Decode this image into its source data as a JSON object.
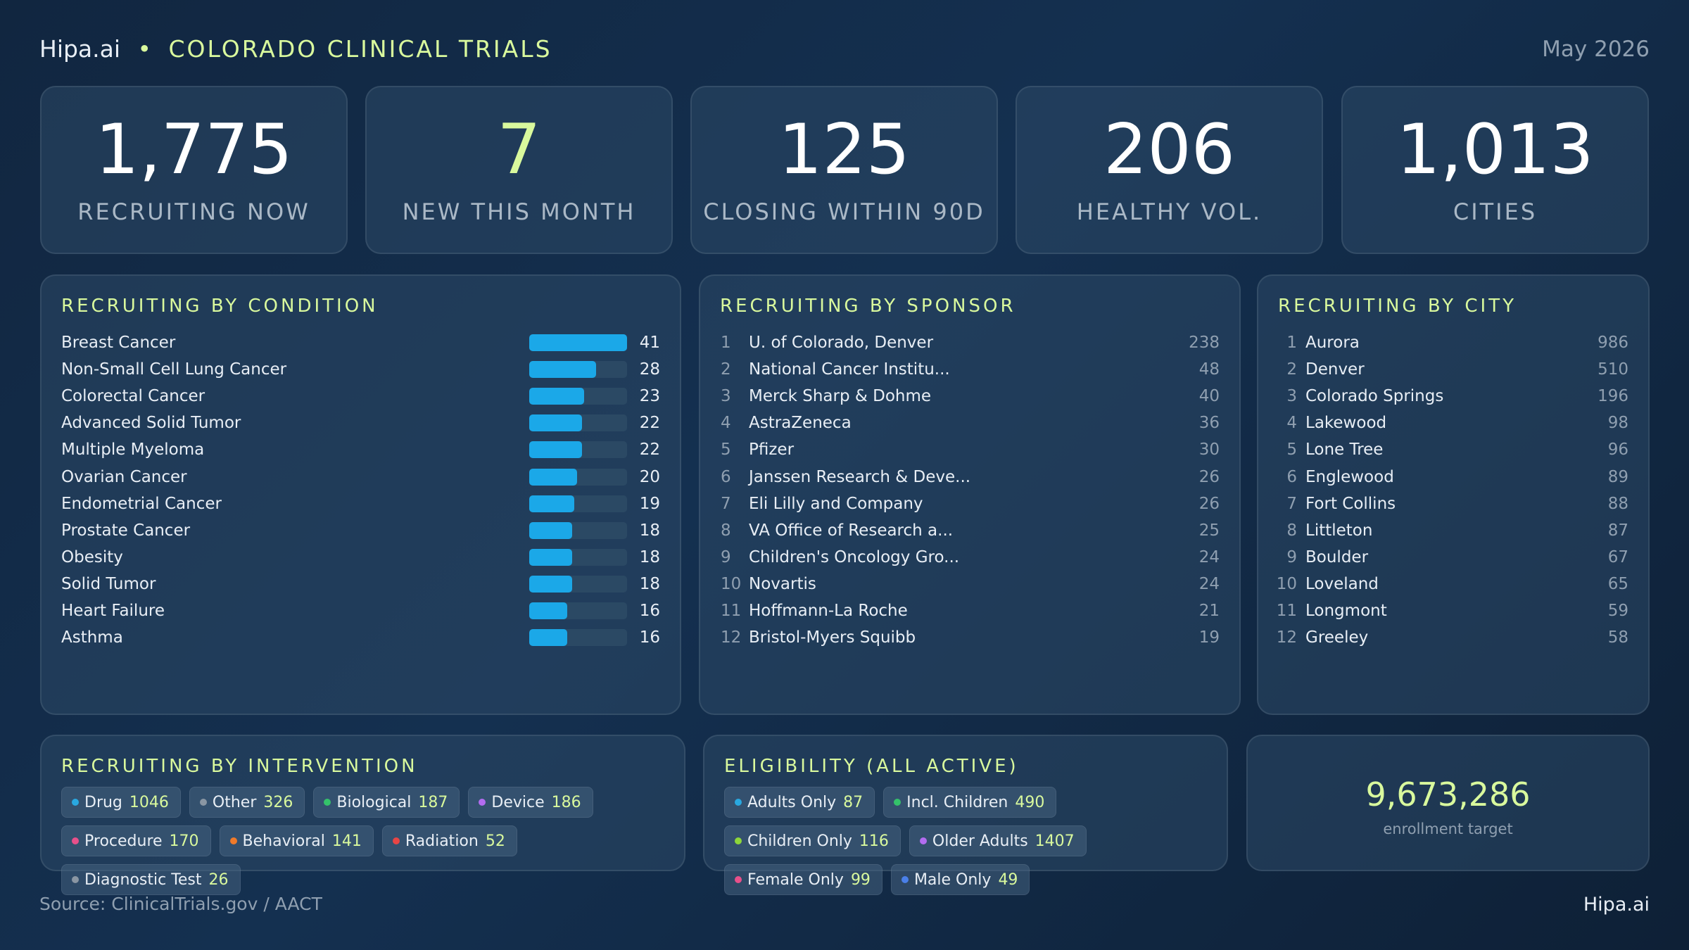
{
  "header": {
    "brand": "Hipa.ai",
    "separator": "•",
    "title": "COLORADO CLINICAL TRIALS",
    "date": "May 2026"
  },
  "kpis": [
    {
      "value": "1,775",
      "label": "RECRUITING NOW",
      "color": "#ffffff"
    },
    {
      "value": "7",
      "label": "NEW THIS MONTH",
      "color": "#d9f99d"
    },
    {
      "value": "125",
      "label": "CLOSING WITHIN 90D",
      "color": "#ffffff"
    },
    {
      "value": "206",
      "label": "HEALTHY VOL.",
      "color": "#ffffff"
    },
    {
      "value": "1,013",
      "label": "CITIES",
      "color": "#ffffff"
    }
  ],
  "conditions": {
    "title": "RECRUITING BY CONDITION",
    "bar_color": "#1ba8e8",
    "rows": [
      {
        "name": "Breast Cancer",
        "value": 41
      },
      {
        "name": "Non-Small Cell Lung Cancer",
        "value": 28
      },
      {
        "name": "Colorectal Cancer",
        "value": 23
      },
      {
        "name": "Advanced Solid Tumor",
        "value": 22
      },
      {
        "name": "Multiple Myeloma",
        "value": 22
      },
      {
        "name": "Ovarian Cancer",
        "value": 20
      },
      {
        "name": "Endometrial Cancer",
        "value": 19
      },
      {
        "name": "Prostate Cancer",
        "value": 18
      },
      {
        "name": "Obesity",
        "value": 18
      },
      {
        "name": "Solid Tumor",
        "value": 18
      },
      {
        "name": "Heart Failure",
        "value": 16
      },
      {
        "name": "Asthma",
        "value": 16
      }
    ]
  },
  "sponsors": {
    "title": "RECRUITING BY SPONSOR",
    "rows": [
      {
        "rank": 1,
        "name": "U. of Colorado, Denver",
        "value": 238
      },
      {
        "rank": 2,
        "name": "National Cancer Institu...",
        "value": 48
      },
      {
        "rank": 3,
        "name": "Merck Sharp & Dohme",
        "value": 40
      },
      {
        "rank": 4,
        "name": "AstraZeneca",
        "value": 36
      },
      {
        "rank": 5,
        "name": "Pfizer",
        "value": 30
      },
      {
        "rank": 6,
        "name": "Janssen Research & Deve...",
        "value": 26
      },
      {
        "rank": 7,
        "name": "Eli Lilly and Company",
        "value": 26
      },
      {
        "rank": 8,
        "name": "VA Office of Research a...",
        "value": 25
      },
      {
        "rank": 9,
        "name": "Children's Oncology Gro...",
        "value": 24
      },
      {
        "rank": 10,
        "name": "Novartis",
        "value": 24
      },
      {
        "rank": 11,
        "name": "Hoffmann-La Roche",
        "value": 21
      },
      {
        "rank": 12,
        "name": "Bristol-Myers Squibb",
        "value": 19
      }
    ]
  },
  "cities": {
    "title": "RECRUITING BY CITY",
    "rows": [
      {
        "rank": 1,
        "name": "Aurora",
        "value": 986
      },
      {
        "rank": 2,
        "name": "Denver",
        "value": 510
      },
      {
        "rank": 3,
        "name": "Colorado Springs",
        "value": 196
      },
      {
        "rank": 4,
        "name": "Lakewood",
        "value": 98
      },
      {
        "rank": 5,
        "name": "Lone Tree",
        "value": 96
      },
      {
        "rank": 6,
        "name": "Englewood",
        "value": 89
      },
      {
        "rank": 7,
        "name": "Fort Collins",
        "value": 88
      },
      {
        "rank": 8,
        "name": "Littleton",
        "value": 87
      },
      {
        "rank": 9,
        "name": "Boulder",
        "value": 67
      },
      {
        "rank": 10,
        "name": "Loveland",
        "value": 65
      },
      {
        "rank": 11,
        "name": "Longmont",
        "value": 59
      },
      {
        "rank": 12,
        "name": "Greeley",
        "value": 58
      }
    ]
  },
  "interventions": {
    "title": "RECRUITING BY INTERVENTION",
    "chips": [
      {
        "label": "Drug",
        "count": 1046,
        "color": "#29a8e0"
      },
      {
        "label": "Other",
        "count": 326,
        "color": "#8a96a3"
      },
      {
        "label": "Biological",
        "count": 187,
        "color": "#34c26a"
      },
      {
        "label": "Device",
        "count": 186,
        "color": "#b36cf0"
      },
      {
        "label": "Procedure",
        "count": 170,
        "color": "#e8508a"
      },
      {
        "label": "Behavioral",
        "count": 141,
        "color": "#f07a2a"
      },
      {
        "label": "Radiation",
        "count": 52,
        "color": "#e84545"
      },
      {
        "label": "Diagnostic Test",
        "count": 26,
        "color": "#8a96a3"
      }
    ]
  },
  "eligibility": {
    "title": "ELIGIBILITY (ALL ACTIVE)",
    "chips": [
      {
        "label": "Adults Only",
        "count": 87,
        "color": "#29a8e0"
      },
      {
        "label": "Incl. Children",
        "count": 490,
        "color": "#34c26a"
      },
      {
        "label": "Children Only",
        "count": 116,
        "color": "#8ed63a"
      },
      {
        "label": "Older Adults",
        "count": 1407,
        "color": "#b36cf0"
      },
      {
        "label": "Female Only",
        "count": 99,
        "color": "#e8508a"
      },
      {
        "label": "Male Only",
        "count": 49,
        "color": "#4a7fe8"
      }
    ]
  },
  "enrollment": {
    "value": "9,673,286",
    "label": "enrollment target"
  },
  "footer": {
    "source": "Source: ClinicalTrials.gov / AACT",
    "brand": "Hipa.ai"
  }
}
